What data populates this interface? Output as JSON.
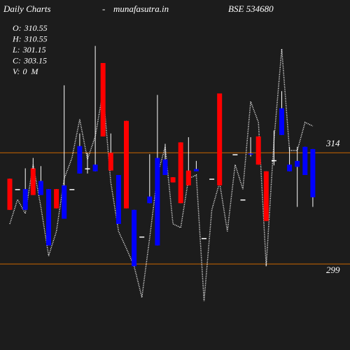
{
  "chart_data": {
    "type": "candlestick",
    "title": "Daily Charts",
    "separator": "-",
    "source": "munafasutra.in",
    "symbol": "BSE 534680",
    "info": [
      {
        "label": "O:",
        "value": 310.55
      },
      {
        "label": "H:",
        "value": 310.55
      },
      {
        "label": "L:",
        "value": 301.15
      },
      {
        "label": "C:",
        "value": 303.15
      },
      {
        "label": "V:",
        "value": 0,
        "unit": "M"
      }
    ],
    "background": "#1c1c1c",
    "up_color": "#0000ff",
    "down_color": "#ff0000",
    "flat_color": "#ffffff",
    "ylim": [
      287.4,
      334.6
    ],
    "levels": [
      314,
      299
    ],
    "level_color": "#cc6600",
    "categories": [
      null,
      null,
      null,
      null,
      null,
      null,
      null,
      null,
      null,
      null,
      null,
      null,
      null,
      null,
      null,
      null,
      null,
      null,
      null,
      null,
      null,
      null,
      null,
      null,
      null,
      null,
      null,
      null,
      null,
      null,
      null,
      null,
      null,
      null,
      null,
      null,
      null,
      null,
      null,
      null
    ],
    "open": [
      310.5,
      309.1,
      306.3,
      311.9,
      308.3,
      301.5,
      309.1,
      305.1,
      309.1,
      311.2,
      311.9,
      311.5,
      326.1,
      314,
      304.4,
      318.3,
      298.7,
      302.7,
      307.2,
      301.5,
      311,
      310.7,
      315.4,
      311.6,
      311.5,
      302.5,
      310.5,
      322,
      null,
      313.8,
      307.7,
      313.8,
      316.2,
      311.5,
      313,
      316.4,
      311.5,
      312.1,
      311,
      308
    ],
    "high": [
      310.5,
      309.1,
      311.9,
      313.3,
      312.2,
      309.1,
      309.1,
      323.1,
      309.1,
      316.6,
      314,
      328.4,
      326.1,
      316.6,
      311,
      318.3,
      306.3,
      302.7,
      313.8,
      321.8,
      315.2,
      310.7,
      315.4,
      316.1,
      312.9,
      302.5,
      310.5,
      322,
      null,
      313.8,
      307.7,
      316.1,
      316.2,
      311.5,
      317,
      322.3,
      314.8,
      314.8,
      314.8,
      314.5
    ],
    "low": [
      306.3,
      309.1,
      306.3,
      308.3,
      308.3,
      301.5,
      306.5,
      305.1,
      309.1,
      311.2,
      311.2,
      311.5,
      316.2,
      311.6,
      304.4,
      306.5,
      298.7,
      302.7,
      307.2,
      301.5,
      311,
      310,
      307.2,
      309.6,
      311.5,
      302.5,
      310.5,
      309.6,
      null,
      313.8,
      307.7,
      313.5,
      312.4,
      304.8,
      312.3,
      316.4,
      311.5,
      306.7,
      311,
      306.7
    ],
    "close": [
      306.3,
      309.1,
      309.1,
      308.3,
      310.2,
      309.1,
      306.5,
      309.6,
      309.1,
      314.9,
      311.9,
      312.4,
      316.2,
      311.6,
      311,
      306.5,
      306.3,
      302.7,
      308.1,
      313.3,
      313.1,
      310,
      307.2,
      309.6,
      311.8,
      302.5,
      310.5,
      309.6,
      null,
      313.8,
      307.7,
      313.9,
      312.4,
      304.8,
      313,
      320,
      312.4,
      312.9,
      314.8,
      314.5
    ],
    "line": {
      "color": "#ffffff",
      "values": [
        304.4,
        307.7,
        305.8,
        312.4,
        306.7,
        300.1,
        303.4,
        310.5,
        313.3,
        318.5,
        313.1,
        316.2,
        322.3,
        310,
        303.4,
        301.1,
        298.7,
        294.5,
        302.5,
        311,
        314.8,
        304.4,
        303.9,
        310.5,
        311,
        294,
        306.3,
        310,
        303.4,
        312.4,
        309.1,
        320.9,
        318.1,
        298.7,
        315.7,
        328,
        314.3,
        314.3,
        318.1,
        317.6
      ]
    }
  }
}
